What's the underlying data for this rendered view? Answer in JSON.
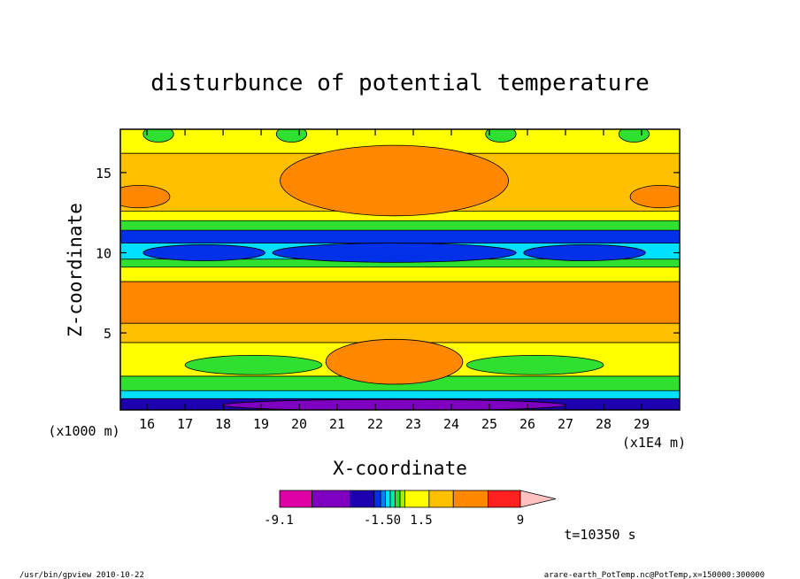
{
  "chart_data": {
    "type": "heatmap",
    "title": "disturbunce of potential temperature",
    "xlabel": "X-coordinate",
    "ylabel": "Z-coordinate",
    "x_unit_label": "(x1E4 m)",
    "y_unit_label": "(x1000 m)",
    "xlim": [
      15.3,
      30.0
    ],
    "ylim": [
      0.2,
      17.7
    ],
    "x_ticks": [
      "16",
      "17",
      "18",
      "19",
      "20",
      "21",
      "22",
      "23",
      "24",
      "25",
      "26",
      "27",
      "28",
      "29"
    ],
    "y_ticks": [
      "5",
      "10",
      "15"
    ],
    "x_tick_values": [
      16,
      17,
      18,
      19,
      20,
      21,
      22,
      23,
      24,
      25,
      26,
      27,
      28,
      29
    ],
    "y_tick_values": [
      5,
      10,
      15
    ],
    "colorbar": {
      "labels": [
        "-9.1",
        "-1.50",
        "1.5",
        "9"
      ],
      "colors": [
        "#e000a8",
        "#7f00c0",
        "#1e00b0",
        "#0030e8",
        "#0080ff",
        "#00e0ff",
        "#00f0a0",
        "#30e030",
        "#a0f000",
        "#ffff00",
        "#ffc000",
        "#ff8800",
        "#ff2020",
        "#ff8080",
        "#ffc0c0"
      ]
    },
    "bands": [
      {
        "z": [
          0.2,
          0.9
        ],
        "value": "-9.1",
        "color": "#1e00b0"
      },
      {
        "z": [
          0.9,
          1.4
        ],
        "value": "-4",
        "color": "#00e0ff"
      },
      {
        "z": [
          1.4,
          2.3
        ],
        "value": "-1",
        "color": "#30e030"
      },
      {
        "z": [
          2.3,
          4.4
        ],
        "value": "0",
        "color": "#ffff00"
      },
      {
        "z": [
          4.4,
          5.6
        ],
        "value": "1.5",
        "color": "#ffc000"
      },
      {
        "z": [
          5.6,
          8.2
        ],
        "value": "3",
        "color": "#ff8800"
      },
      {
        "z": [
          8.2,
          9.1
        ],
        "value": "0.5",
        "color": "#ffff00"
      },
      {
        "z": [
          9.1,
          9.6
        ],
        "value": "-1",
        "color": "#30e030"
      },
      {
        "z": [
          9.6,
          10.6
        ],
        "value": "-4",
        "color": "#00e0ff"
      },
      {
        "z": [
          10.6,
          11.4
        ],
        "value": "-6",
        "color": "#0030e8"
      },
      {
        "z": [
          11.4,
          12.0
        ],
        "value": "-1",
        "color": "#30e030"
      },
      {
        "z": [
          12.0,
          12.6
        ],
        "value": "0.5",
        "color": "#ffff00"
      },
      {
        "z": [
          12.6,
          16.2
        ],
        "value": "1.5",
        "color": "#ffc000"
      },
      {
        "z": [
          16.2,
          17.7
        ],
        "value": "0",
        "color": "#ffff00"
      }
    ],
    "blobs": [
      {
        "cx": 22.5,
        "cz": 14.5,
        "rx": 3.0,
        "rz": 2.2,
        "color": "#ff8800"
      },
      {
        "cx": 22.5,
        "cz": 10.0,
        "rx": 3.2,
        "rz": 0.6,
        "color": "#0030e8"
      },
      {
        "cx": 17.5,
        "cz": 10.0,
        "rx": 1.6,
        "rz": 0.5,
        "color": "#0030e8"
      },
      {
        "cx": 27.5,
        "cz": 10.0,
        "rx": 1.6,
        "rz": 0.5,
        "color": "#0030e8"
      },
      {
        "cx": 15.8,
        "cz": 13.5,
        "rx": 0.8,
        "rz": 0.7,
        "color": "#ff8800"
      },
      {
        "cx": 29.5,
        "cz": 13.5,
        "rx": 0.8,
        "rz": 0.7,
        "color": "#ff8800"
      },
      {
        "cx": 22.5,
        "cz": 3.2,
        "rx": 1.8,
        "rz": 1.4,
        "color": "#ff8800"
      },
      {
        "cx": 18.8,
        "cz": 3.0,
        "rx": 1.8,
        "rz": 0.6,
        "color": "#30e030"
      },
      {
        "cx": 26.2,
        "cz": 3.0,
        "rx": 1.8,
        "rz": 0.6,
        "color": "#30e030"
      },
      {
        "cx": 16.3,
        "cz": 17.4,
        "rx": 0.4,
        "rz": 0.5,
        "color": "#30e030"
      },
      {
        "cx": 19.8,
        "cz": 17.4,
        "rx": 0.4,
        "rz": 0.5,
        "color": "#30e030"
      },
      {
        "cx": 25.3,
        "cz": 17.4,
        "rx": 0.4,
        "rz": 0.5,
        "color": "#30e030"
      },
      {
        "cx": 28.8,
        "cz": 17.4,
        "rx": 0.4,
        "rz": 0.5,
        "color": "#30e030"
      },
      {
        "cx": 22.5,
        "cz": 0.5,
        "rx": 4.5,
        "rz": 0.35,
        "color": "#7f00c0"
      }
    ]
  },
  "annotations": {
    "time": "t=10350 s",
    "program": "/usr/bin/gpview   2010-10-22",
    "source": "arare-earth_PotTemp.nc@PotTemp,x=150000:300000"
  }
}
